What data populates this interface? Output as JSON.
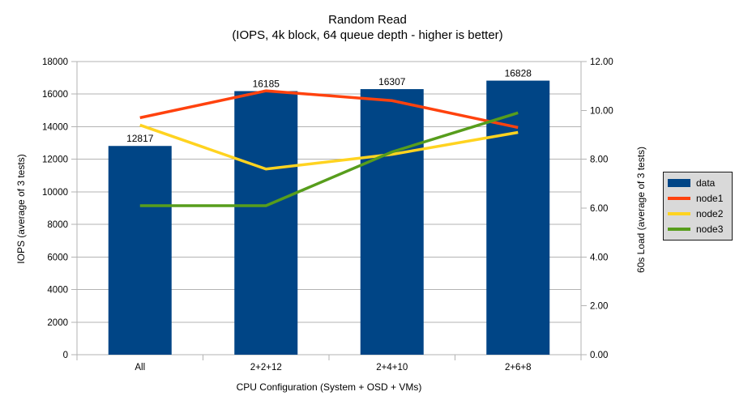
{
  "title": "Random Read",
  "subtitle": "(IOPS, 4k block, 64 queue depth - higher is better)",
  "chart_data": {
    "type": "bar+line combo",
    "categories": [
      "All",
      "2+2+12",
      "2+4+10",
      "2+6+8"
    ],
    "bar_series": {
      "name": "data",
      "color": "#004586",
      "axis": "left",
      "values": [
        12817,
        16185,
        16307,
        16828
      ]
    },
    "line_series": [
      {
        "name": "node1",
        "color": "#ff420e",
        "axis": "right",
        "values": [
          9.7,
          10.8,
          10.4,
          9.3
        ]
      },
      {
        "name": "node2",
        "color": "#ffd320",
        "axis": "right",
        "values": [
          9.4,
          7.6,
          8.2,
          9.1
        ]
      },
      {
        "name": "node3",
        "color": "#579d1c",
        "axis": "right",
        "values": [
          6.1,
          6.1,
          8.3,
          9.9
        ]
      }
    ],
    "left_axis": {
      "label": "IOPS (average of 3 tests)",
      "min": 0,
      "max": 18000,
      "step": 2000,
      "decimals": 0
    },
    "right_axis": {
      "label": "60s Load (average of 3 tests)",
      "min": 0,
      "max": 12,
      "step": 2,
      "decimals": 2
    },
    "x_axis": {
      "label": "CPU Configuration (System + OSD + VMs)"
    },
    "grid": {
      "horizontal": true,
      "vertical": false,
      "color": "#b3b3b3"
    },
    "legend": {
      "position": "right",
      "background": "#d9d9d9",
      "border_color": "#1a1a1a",
      "entries": [
        {
          "label": "data",
          "color": "#004586",
          "swatch": "rect"
        },
        {
          "label": "node1",
          "color": "#ff420e",
          "swatch": "line"
        },
        {
          "label": "node2",
          "color": "#ffd320",
          "swatch": "line"
        },
        {
          "label": "node3",
          "color": "#579d1c",
          "swatch": "line"
        }
      ]
    }
  }
}
